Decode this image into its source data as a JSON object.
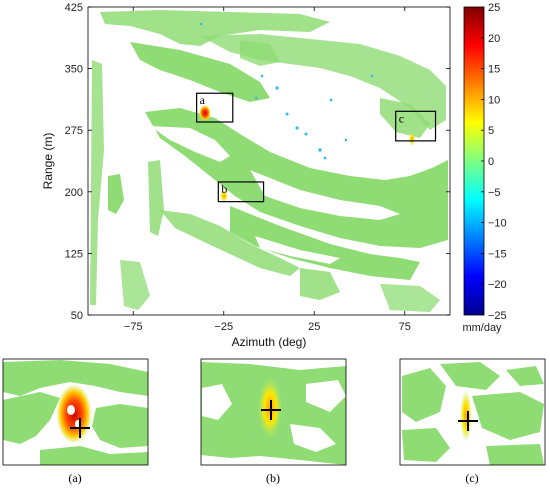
{
  "chart_data": {
    "type": "heatmap",
    "main_map": {
      "xlabel": "Azimuth (deg)",
      "ylabel": "Range (m)",
      "x_ticks": [
        -75,
        -25,
        25,
        75
      ],
      "x_tick_labels": [
        "−75",
        "−25",
        "25",
        "75"
      ],
      "y_ticks": [
        50,
        125,
        200,
        275,
        350,
        425
      ],
      "y_tick_labels": [
        "50",
        "125",
        "200",
        "275",
        "350",
        "425"
      ],
      "xlim": [
        -100,
        100
      ],
      "ylim": [
        50,
        425
      ],
      "grid": false,
      "colormap": "jet",
      "colorbar": {
        "range": [
          -25,
          25
        ],
        "ticks": [
          25,
          20,
          15,
          10,
          5,
          0,
          -5,
          -10,
          -15,
          -20,
          -25
        ],
        "tick_labels": [
          "25",
          "20",
          "15",
          "10",
          "5",
          "0",
          "−5",
          "−10",
          "−15",
          "−20",
          "−25"
        ],
        "unit": "mm/day"
      },
      "regions_of_interest": [
        {
          "label": "a",
          "azimuth": [
            -40,
            -20
          ],
          "range": [
            285,
            320
          ],
          "peak_mm_day": 20
        },
        {
          "label": "b",
          "azimuth": [
            -28,
            -3
          ],
          "range": [
            188,
            212
          ],
          "peak_mm_day": 8
        },
        {
          "label": "c",
          "azimuth": [
            70,
            92
          ],
          "range": [
            262,
            298
          ],
          "peak_mm_day": 6
        }
      ]
    },
    "insets": [
      {
        "caption": "(a)",
        "region": "a",
        "peak_mm_day": 20
      },
      {
        "caption": "(b)",
        "region": "b",
        "peak_mm_day": 8
      },
      {
        "caption": "(c)",
        "region": "c",
        "peak_mm_day": 6
      }
    ]
  }
}
